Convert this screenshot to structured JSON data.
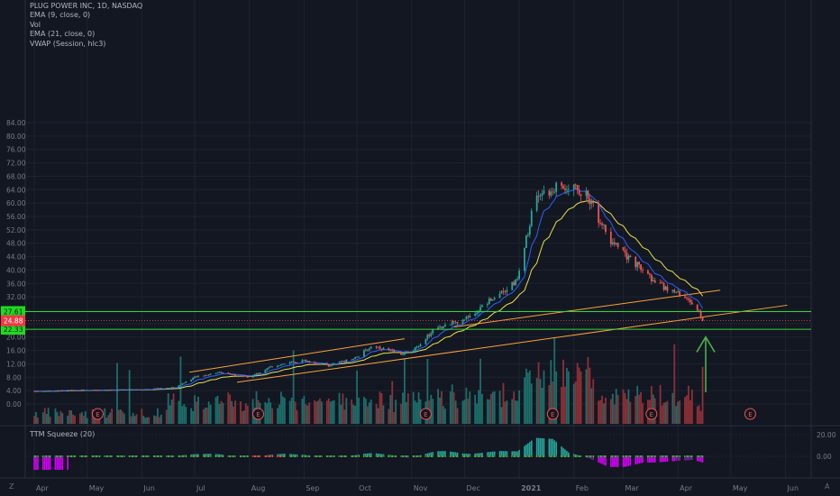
{
  "legend": {
    "symbol": "PLUG POWER INC, 1D, NASDAQ",
    "ema9": "EMA (9, close, 0)",
    "vol": "Vol",
    "ema21": "EMA (21, close, 0)",
    "vwap": "VWAP (Session, hlc3)"
  },
  "indicator_label": "TTM Squeeze (20)",
  "colors": {
    "background": "#131722",
    "grid": "#1f2330",
    "up": "#26a69a",
    "down": "#ef5350",
    "volume_up": "#1c6e6a",
    "volume_down": "#8e3036",
    "ema9": "#2962ff",
    "ema21": "#e8e04a",
    "trendline": "#f7a23b",
    "support": "#3ad33a",
    "arrow": "#4caf50",
    "price_badge": "#f23645",
    "level_badge": "#1fd91f"
  },
  "icons": {
    "left_bottom": "Z",
    "right_bottom": "A"
  },
  "chart_data": {
    "type": "candlestick",
    "symbol": "PLUG POWER INC",
    "interval": "1D",
    "exchange": "NASDAQ",
    "y_axis": {
      "ticks": [
        "84.00",
        "80.00",
        "76.00",
        "72.00",
        "68.00",
        "64.00",
        "60.00",
        "56.00",
        "52.00",
        "48.00",
        "44.00",
        "40.00",
        "36.00",
        "32.00",
        "28.00",
        "24.00",
        "20.00",
        "16.00",
        "12.00",
        "8.00",
        "4.00",
        "0.00"
      ],
      "ylim": [
        -1,
        84
      ]
    },
    "x_axis": {
      "ticks": [
        "Apr",
        "May",
        "Jun",
        "Jul",
        "Aug",
        "Sep",
        "Oct",
        "Nov",
        "Dec",
        "2021",
        "Feb",
        "Mar",
        "Apr",
        "May",
        "Jun"
      ]
    },
    "price_path": [
      {
        "date": "2020-04-01",
        "price": 3.8
      },
      {
        "date": "2020-05-01",
        "price": 4.2
      },
      {
        "date": "2020-06-01",
        "price": 4.3
      },
      {
        "date": "2020-06-20",
        "price": 5.0
      },
      {
        "date": "2020-07-01",
        "price": 8.0
      },
      {
        "date": "2020-07-15",
        "price": 9.5
      },
      {
        "date": "2020-08-01",
        "price": 8.0
      },
      {
        "date": "2020-08-15",
        "price": 11.5
      },
      {
        "date": "2020-09-01",
        "price": 13.0
      },
      {
        "date": "2020-09-15",
        "price": 11.5
      },
      {
        "date": "2020-10-01",
        "price": 14.0
      },
      {
        "date": "2020-10-10",
        "price": 17.5
      },
      {
        "date": "2020-10-25",
        "price": 15.0
      },
      {
        "date": "2020-11-01",
        "price": 15.5
      },
      {
        "date": "2020-11-15",
        "price": 23.0
      },
      {
        "date": "2020-12-01",
        "price": 25.0
      },
      {
        "date": "2020-12-15",
        "price": 31.0
      },
      {
        "date": "2020-12-31",
        "price": 37.0
      },
      {
        "date": "2021-01-10",
        "price": 62.0
      },
      {
        "date": "2021-01-20",
        "price": 64.0
      },
      {
        "date": "2021-02-01",
        "price": 66.0
      },
      {
        "date": "2021-02-10",
        "price": 61.0
      },
      {
        "date": "2021-02-20",
        "price": 50.0
      },
      {
        "date": "2021-03-01",
        "price": 45.0
      },
      {
        "date": "2021-03-10",
        "price": 41.0
      },
      {
        "date": "2021-03-20",
        "price": 36.0
      },
      {
        "date": "2021-04-01",
        "price": 33.0
      },
      {
        "date": "2021-04-10",
        "price": 30.0
      },
      {
        "date": "2021-04-15",
        "price": 24.88
      }
    ],
    "last_price": "24.88",
    "levels": [
      {
        "label": "27.61",
        "value": 27.61
      },
      {
        "label": "22.33",
        "value": 22.33
      }
    ],
    "earnings_labels": [
      "E",
      "E",
      "E",
      "E",
      "E",
      "E"
    ],
    "indicator": {
      "name": "TTM Squeeze (20)",
      "ticks": [
        "20.00",
        "0.00"
      ]
    }
  }
}
